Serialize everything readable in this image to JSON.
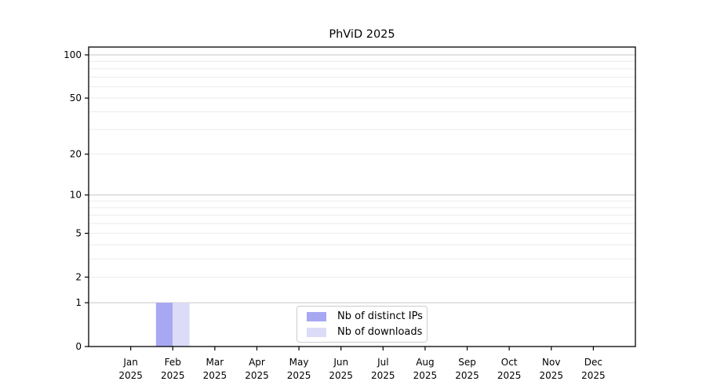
{
  "chart_data": {
    "type": "bar",
    "title": "PhViD 2025",
    "categories": [
      {
        "month": "Jan",
        "year": "2025"
      },
      {
        "month": "Feb",
        "year": "2025"
      },
      {
        "month": "Mar",
        "year": "2025"
      },
      {
        "month": "Apr",
        "year": "2025"
      },
      {
        "month": "May",
        "year": "2025"
      },
      {
        "month": "Jun",
        "year": "2025"
      },
      {
        "month": "Jul",
        "year": "2025"
      },
      {
        "month": "Aug",
        "year": "2025"
      },
      {
        "month": "Sep",
        "year": "2025"
      },
      {
        "month": "Oct",
        "year": "2025"
      },
      {
        "month": "Nov",
        "year": "2025"
      },
      {
        "month": "Dec",
        "year": "2025"
      }
    ],
    "series": [
      {
        "name": "Nb of distinct IPs",
        "color": "#a8a8f2",
        "values": [
          0,
          1,
          0,
          0,
          0,
          0,
          0,
          0,
          0,
          0,
          0,
          0
        ]
      },
      {
        "name": "Nb of downloads",
        "color": "#dcdcf8",
        "values": [
          0,
          1,
          0,
          0,
          0,
          0,
          0,
          0,
          0,
          0,
          0,
          0
        ]
      }
    ],
    "y_axis": {
      "scale": "log10(1+v)",
      "tick_values": [
        0,
        1,
        2,
        5,
        10,
        20,
        50,
        100
      ],
      "tick_labels": [
        "0",
        "1",
        "2",
        "5",
        "10",
        "20",
        "50",
        "100"
      ],
      "major_gridlines": [
        1,
        10,
        100
      ],
      "minor_gridlines": [
        2,
        3,
        4,
        5,
        6,
        7,
        8,
        9,
        20,
        30,
        40,
        50,
        60,
        70,
        80,
        90
      ],
      "range": [
        0,
        113
      ]
    },
    "xlabel": "",
    "ylabel": "",
    "legend_position": "lower center (inside plot)",
    "grid": true
  },
  "colors": {
    "axis_frame": "#000000",
    "grid_major": "#c6c6c6",
    "grid_minor": "#ececec",
    "tick_text": "#000000",
    "background": "#ffffff"
  }
}
